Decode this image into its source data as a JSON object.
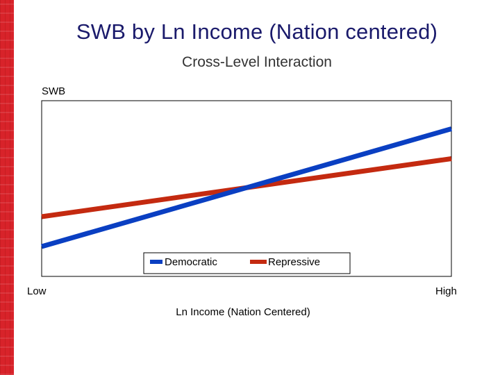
{
  "slide": {
    "title": "SWB by Ln Income (Nation centered)",
    "subtitle": "Cross-Level Interaction",
    "accent_color": "#d8232a"
  },
  "chart_data": {
    "type": "line",
    "ylabel": "SWB",
    "xlabel": "Ln Income (Nation Centered)",
    "x": [
      "Low",
      "High"
    ],
    "x_ticks": [
      "Low",
      "High"
    ],
    "ylim": [
      0,
      100
    ],
    "grid": false,
    "legend_position": "bottom-right inside",
    "series": [
      {
        "name": "Democratic",
        "color": "#0a3fc2",
        "values": [
          17,
          84
        ]
      },
      {
        "name": "Repressive",
        "color": "#c42a10",
        "values": [
          34,
          67
        ]
      }
    ]
  }
}
